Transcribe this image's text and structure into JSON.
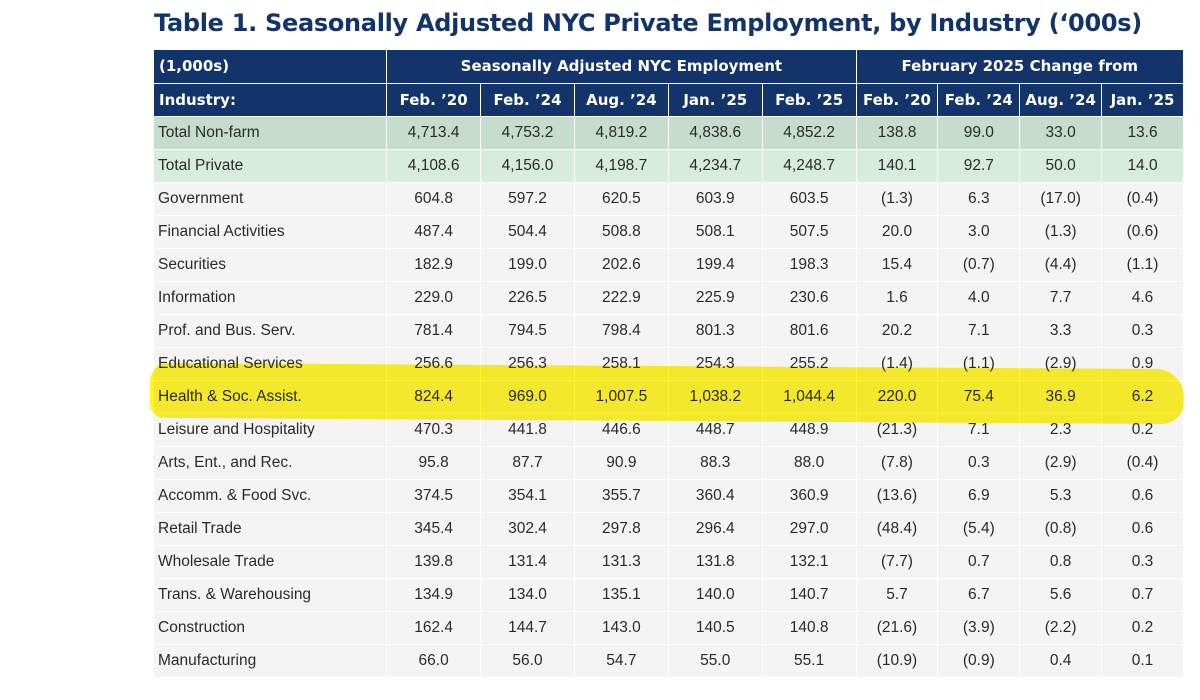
{
  "title": "Table 1. Seasonally Adjusted NYC Private Employment, by Industry (‘000s)",
  "header": {
    "units_label": "(1,000s)",
    "employment_group": "Seasonally Adjusted NYC Employment",
    "change_group": "February 2025 Change from",
    "industry_label": "Industry:",
    "employment_cols": [
      "Feb. ’20",
      "Feb. ’24",
      "Aug. ’24",
      "Jan. ’25",
      "Feb. ’25"
    ],
    "change_cols": [
      "Feb. ’20",
      "Feb. ’24",
      "Aug. ’24",
      "Jan. ’25"
    ]
  },
  "rows": [
    {
      "industry": "Total Non-farm",
      "style": "total",
      "values": [
        "4,713.4",
        "4,753.2",
        "4,819.2",
        "4,838.6",
        "4,852.2",
        "138.8",
        "99.0",
        "33.0",
        "13.6"
      ]
    },
    {
      "industry": "Total Private",
      "style": "total-light",
      "values": [
        "4,108.6",
        "4,156.0",
        "4,198.7",
        "4,234.7",
        "4,248.7",
        "140.1",
        "92.7",
        "50.0",
        "14.0"
      ]
    },
    {
      "industry": "Government",
      "style": "plain",
      "values": [
        "604.8",
        "597.2",
        "620.5",
        "603.9",
        "603.5",
        "(1.3)",
        "6.3",
        "(17.0)",
        "(0.4)"
      ]
    },
    {
      "industry": "Financial Activities",
      "style": "plain",
      "values": [
        "487.4",
        "504.4",
        "508.8",
        "508.1",
        "507.5",
        "20.0",
        "3.0",
        "(1.3)",
        "(0.6)"
      ]
    },
    {
      "industry": "Securities",
      "style": "plain",
      "values": [
        "182.9",
        "199.0",
        "202.6",
        "199.4",
        "198.3",
        "15.4",
        "(0.7)",
        "(4.4)",
        "(1.1)"
      ]
    },
    {
      "industry": "Information",
      "style": "plain",
      "values": [
        "229.0",
        "226.5",
        "222.9",
        "225.9",
        "230.6",
        "1.6",
        "4.0",
        "7.7",
        "4.6"
      ]
    },
    {
      "industry": "Prof. and Bus. Serv.",
      "style": "plain",
      "values": [
        "781.4",
        "794.5",
        "798.4",
        "801.3",
        "801.6",
        "20.2",
        "7.1",
        "3.3",
        "0.3"
      ]
    },
    {
      "industry": "Educational Services",
      "style": "plain",
      "values": [
        "256.6",
        "256.3",
        "258.1",
        "254.3",
        "255.2",
        "(1.4)",
        "(1.1)",
        "(2.9)",
        "0.9"
      ]
    },
    {
      "industry": "Health & Soc. Assist.",
      "style": "plain",
      "values": [
        "824.4",
        "969.0",
        "1,007.5",
        "1,038.2",
        "1,044.4",
        "220.0",
        "75.4",
        "36.9",
        "6.2"
      ]
    },
    {
      "industry": "Leisure and Hospitality",
      "style": "plain",
      "values": [
        "470.3",
        "441.8",
        "446.6",
        "448.7",
        "448.9",
        "(21.3)",
        "7.1",
        "2.3",
        "0.2"
      ]
    },
    {
      "industry": "Arts, Ent., and Rec.",
      "style": "plain",
      "values": [
        "95.8",
        "87.7",
        "90.9",
        "88.3",
        "88.0",
        "(7.8)",
        "0.3",
        "(2.9)",
        "(0.4)"
      ]
    },
    {
      "industry": "Accomm. & Food Svc.",
      "style": "plain",
      "values": [
        "374.5",
        "354.1",
        "355.7",
        "360.4",
        "360.9",
        "(13.6)",
        "6.9",
        "5.3",
        "0.6"
      ]
    },
    {
      "industry": "Retail Trade",
      "style": "plain",
      "values": [
        "345.4",
        "302.4",
        "297.8",
        "296.4",
        "297.0",
        "(48.4)",
        "(5.4)",
        "(0.8)",
        "0.6"
      ]
    },
    {
      "industry": "Wholesale Trade",
      "style": "plain",
      "values": [
        "139.8",
        "131.4",
        "131.3",
        "131.8",
        "132.1",
        "(7.7)",
        "0.7",
        "0.8",
        "0.3"
      ]
    },
    {
      "industry": "Trans. & Warehousing",
      "style": "plain",
      "values": [
        "134.9",
        "134.0",
        "135.1",
        "140.0",
        "140.7",
        "5.7",
        "6.7",
        "5.6",
        "0.7"
      ]
    },
    {
      "industry": "Construction",
      "style": "plain",
      "values": [
        "162.4",
        "144.7",
        "143.0",
        "140.5",
        "140.8",
        "(21.6)",
        "(3.9)",
        "(2.2)",
        "0.2"
      ]
    },
    {
      "industry": "Manufacturing",
      "style": "plain",
      "values": [
        "66.0",
        "56.0",
        "54.7",
        "55.0",
        "55.1",
        "(10.9)",
        "(0.9)",
        "0.4",
        "0.1"
      ]
    }
  ],
  "colors": {
    "title": "#13336b",
    "header_bg": "#13336b",
    "total_row_bg": "#c5dccf",
    "total_row_light_bg": "#d8ebdf",
    "plain_row_bg": "#f4f4f4",
    "highlighter": "#fff000"
  },
  "highlighted_row": "Health & Soc. Assist."
}
